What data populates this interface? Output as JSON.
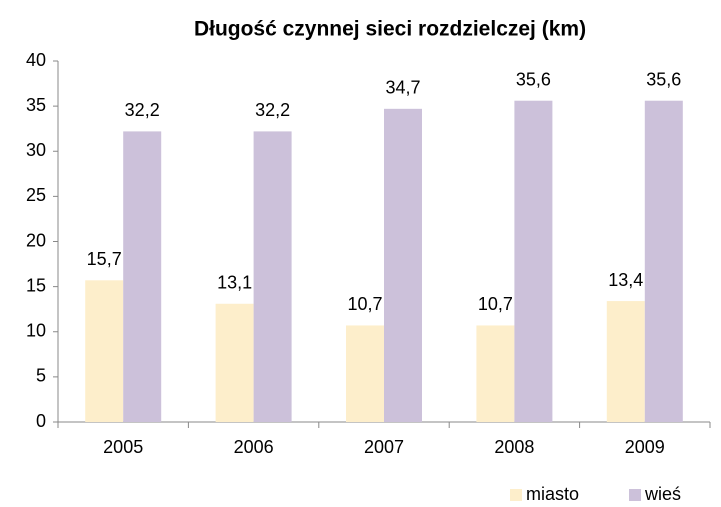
{
  "chart_data": {
    "type": "bar",
    "title": "Długość czynnej sieci rozdzielczej (km)",
    "categories": [
      "2005",
      "2006",
      "2007",
      "2008",
      "2009"
    ],
    "series": [
      {
        "name": "miasto",
        "color": "#fdeecb",
        "values": [
          15.7,
          13.1,
          10.7,
          10.7,
          13.4
        ],
        "value_labels": [
          "15,7",
          "13,1",
          "10,7",
          "10,7",
          "13,4"
        ]
      },
      {
        "name": "wieś",
        "color": "#ccc1da",
        "values": [
          32.2,
          32.2,
          34.7,
          35.6,
          35.6
        ],
        "value_labels": [
          "32,2",
          "32,2",
          "34,7",
          "35,6",
          "35,6"
        ]
      }
    ],
    "ylim": [
      0,
      40
    ],
    "yticks": [
      0,
      5,
      10,
      15,
      20,
      25,
      30,
      35,
      40
    ],
    "grid": false,
    "legend": "bottom-right"
  }
}
